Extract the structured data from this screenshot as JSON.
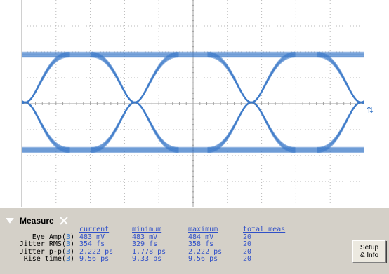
{
  "measure_panel": {
    "title": "Measure",
    "headers": [
      "current",
      "minimum",
      "maximum",
      "total meas"
    ],
    "rows": [
      {
        "label": "Eye Amp(",
        "channel": "3",
        "current": "483 mV",
        "minimum": "483 mV",
        "maximum": "484 mV",
        "total": "20"
      },
      {
        "label": "Jitter RMS(",
        "channel": "3",
        "current": "354 fs",
        "minimum": "329 fs",
        "maximum": "358 fs",
        "total": "20"
      },
      {
        "label": "Jitter p-p(",
        "channel": "3",
        "current": "2.222 ps",
        "minimum": "1.778 ps",
        "maximum": "2.222 ps",
        "total": "20"
      },
      {
        "label": "Rise time(",
        "channel": "3",
        "current": "9.56 ps",
        "minimum": "9.33 ps",
        "maximum": "9.56 ps",
        "total": "20"
      }
    ],
    "setup_button": {
      "line1": "Setup",
      "line2": "& Info"
    }
  },
  "colors": {
    "trace": "#3a78c8",
    "grid": "#b8b8b8",
    "panel": "#d4d0c8",
    "value_text": "#3050c8"
  },
  "icons": {
    "trigger": "trigger-level-icon",
    "collapse": "chevron-down-icon",
    "close": "close-icon"
  }
}
